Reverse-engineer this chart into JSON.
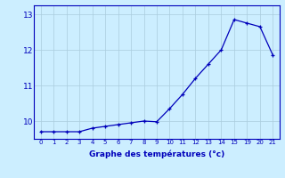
{
  "x_positions": [
    0,
    1,
    2,
    3,
    4,
    5,
    6,
    7,
    8,
    9,
    10,
    11,
    12,
    13,
    14,
    15,
    16,
    17,
    18
  ],
  "x_labels": [
    "0",
    "1",
    "2",
    "3",
    "4",
    "5",
    "6",
    "7",
    "8",
    "9",
    "10",
    "11",
    "12",
    "13",
    "14",
    "15",
    "19",
    "20",
    "21"
  ],
  "y": [
    9.7,
    9.7,
    9.7,
    9.7,
    9.8,
    9.85,
    9.9,
    9.95,
    10.0,
    9.98,
    10.35,
    10.75,
    11.2,
    11.6,
    12.0,
    12.85,
    12.75,
    12.65,
    11.85
  ],
  "line_color": "#0000bb",
  "marker_color": "#0000bb",
  "bg_color": "#cceeff",
  "grid_color": "#aaccdd",
  "axis_color": "#0000bb",
  "xlabel": "Graphe des températures (°c)",
  "ylim": [
    9.5,
    13.25
  ],
  "yticks": [
    10,
    11,
    12,
    13
  ],
  "xlim": [
    -0.5,
    18.5
  ]
}
